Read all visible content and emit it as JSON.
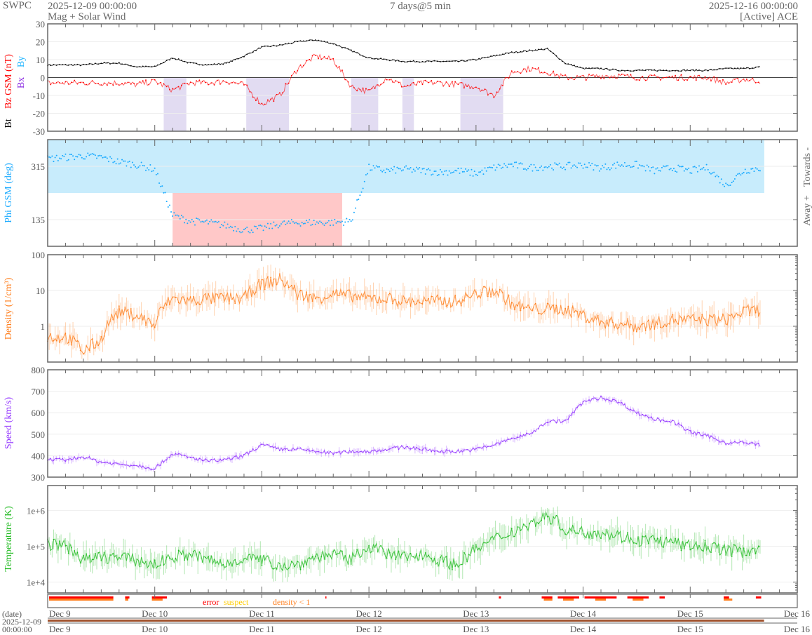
{
  "header": {
    "brand": "SWPC",
    "start_time": "2025-12-09 00:00:00",
    "subtitle": "Mag + Solar Wind",
    "span": "7 days@5 min",
    "end_time": "2025-12-16 00:00:00",
    "source": "[Active] ACE"
  },
  "colors": {
    "bt": "#000000",
    "bz": "#ff0000",
    "bx": "#8a2be2",
    "by": "#1eb4ff",
    "phi": "#19aaff",
    "density": "#ff7f1e",
    "speed": "#9437ff",
    "temperature": "#22bb22",
    "error": "#ff0000",
    "suspect": "#ffcc00",
    "density_low": "#ff7f1e",
    "date_bar": "#a0522d"
  },
  "chart_data": [
    {
      "type": "line",
      "title": "Mag",
      "ylabel_parts": {
        "bt": "Bt",
        "bz": "Bz GSM (nT)",
        "bx": "Bx",
        "by": "By"
      },
      "ylim": [
        -30,
        30
      ],
      "yticks": [
        "30",
        "20",
        "10",
        "0",
        "-10",
        "-20",
        "-30"
      ],
      "ytick_values": [
        30,
        20,
        10,
        0,
        -10,
        -20,
        -30
      ],
      "x_hours_step": 4,
      "series": [
        {
          "name": "Bt",
          "key": "bt",
          "values": [
            7,
            7,
            7,
            8,
            8,
            6,
            6,
            11,
            8,
            7,
            8,
            12,
            17,
            18,
            20,
            21,
            19,
            15,
            11,
            10,
            9,
            9,
            9,
            9,
            10,
            12,
            14,
            15,
            16,
            8,
            5,
            5,
            4,
            4,
            4,
            4,
            4,
            4,
            5,
            5,
            6
          ]
        },
        {
          "name": "Bz GSM",
          "key": "bz",
          "values": [
            -3,
            -3,
            -3,
            -3,
            -3,
            -4,
            -2,
            -7,
            -3,
            -3,
            -2,
            -4,
            -15,
            -10,
            5,
            12,
            10,
            -5,
            -8,
            0,
            -5,
            -3,
            -3,
            -4,
            -5,
            -10,
            3,
            5,
            3,
            0,
            0,
            1,
            1,
            0,
            0,
            0,
            0,
            0,
            -3,
            -1,
            -2
          ]
        }
      ]
    },
    {
      "type": "scatter",
      "ylabel": "Phi GSM (deg)",
      "ylim": [
        45,
        405
      ],
      "yticks": [
        "315",
        "135"
      ],
      "ytick_values": [
        315,
        135
      ],
      "right_labels": {
        "towards": "Towards -",
        "away": "Away +"
      },
      "x_hours_step": 4,
      "series": [
        {
          "name": "Phi GSM",
          "key": "phi",
          "values": [
            340,
            345,
            350,
            345,
            330,
            320,
            305,
            150,
            130,
            125,
            115,
            100,
            105,
            120,
            125,
            125,
            125,
            130,
            310,
            300,
            305,
            300,
            295,
            300,
            290,
            310,
            320,
            310,
            315,
            315,
            320,
            310,
            320,
            320,
            300,
            310,
            300,
            310,
            250,
            300,
            310
          ]
        }
      ]
    },
    {
      "type": "line",
      "ylabel": "Density (1/cm³)",
      "scale": "log",
      "ylim": [
        0.1,
        100
      ],
      "yticks": [
        "100",
        "10",
        "1"
      ],
      "ytick_values": [
        100,
        10,
        1
      ],
      "x_hours_step": 4,
      "series": [
        {
          "name": "Density",
          "key": "density",
          "values": [
            0.5,
            0.5,
            0.2,
            0.4,
            2.5,
            2,
            1,
            6,
            5,
            6,
            6,
            6,
            15,
            20,
            8,
            6,
            8,
            7,
            6,
            6,
            5,
            5,
            5,
            5,
            8,
            10,
            4,
            3,
            3,
            3,
            2,
            1.3,
            1.2,
            1,
            1.2,
            1.5,
            1.5,
            1.5,
            1.5,
            2.5,
            3
          ]
        }
      ]
    },
    {
      "type": "line",
      "ylabel": "Speed (km/s)",
      "ylim": [
        300,
        800
      ],
      "yticks": [
        "800",
        "700",
        "600",
        "500",
        "400",
        "300"
      ],
      "ytick_values": [
        800,
        700,
        600,
        500,
        400,
        300
      ],
      "x_hours_step": 4,
      "series": [
        {
          "name": "Speed",
          "key": "speed",
          "values": [
            380,
            380,
            395,
            370,
            360,
            355,
            340,
            410,
            390,
            375,
            380,
            400,
            450,
            430,
            430,
            420,
            410,
            420,
            420,
            430,
            440,
            430,
            420,
            420,
            430,
            450,
            480,
            500,
            560,
            560,
            650,
            670,
            650,
            600,
            570,
            560,
            510,
            490,
            460,
            460,
            450
          ]
        }
      ]
    },
    {
      "type": "line",
      "ylabel": "Temperature (K)",
      "scale": "log",
      "ylim": [
        5000,
        5000000
      ],
      "yticks": [
        "1e+6",
        "1e+5",
        "1e+4"
      ],
      "ytick_values": [
        1000000,
        100000,
        10000
      ],
      "x_hours_step": 4,
      "series": [
        {
          "name": "Temperature",
          "key": "temperature",
          "values": [
            120000,
            100000,
            40000,
            50000,
            50000,
            40000,
            30000,
            50000,
            60000,
            40000,
            30000,
            50000,
            40000,
            30000,
            30000,
            50000,
            60000,
            40000,
            100000,
            60000,
            50000,
            60000,
            40000,
            30000,
            80000,
            150000,
            250000,
            400000,
            700000,
            300000,
            250000,
            250000,
            200000,
            150000,
            150000,
            120000,
            100000,
            100000,
            80000,
            70000,
            100000
          ]
        }
      ]
    }
  ],
  "flags": {
    "legend": {
      "error": "error",
      "suspect": "suspect",
      "density_low": "density < 1"
    },
    "error_days": [
      [
        0,
        0.6
      ],
      [
        0.71,
        0.75
      ],
      [
        0.96,
        1.1
      ],
      [
        2.58,
        2.59
      ],
      [
        4.2,
        4.22
      ],
      [
        4.6,
        4.7
      ],
      [
        4.75,
        4.95
      ],
      [
        5.0,
        5.3
      ],
      [
        5.4,
        5.6
      ],
      [
        5.7,
        5.75
      ],
      [
        6.3,
        6.35
      ],
      [
        6.6,
        6.65
      ]
    ],
    "density_low_days": [
      [
        0,
        0.6
      ],
      [
        0.71,
        0.74
      ],
      [
        0.96,
        1.06
      ],
      [
        4.62,
        4.7
      ],
      [
        4.8,
        4.9
      ],
      [
        5.1,
        5.2
      ],
      [
        5.45,
        5.55
      ],
      [
        6.3,
        6.38
      ]
    ]
  },
  "x_axis": {
    "ticks": [
      "Dec 9",
      "Dec 10",
      "Dec 11",
      "Dec 12",
      "Dec 13",
      "Dec 14",
      "Dec 15",
      "Dec 16"
    ],
    "date_label": "(date)",
    "date_value": "2025-12-09",
    "time_value": "00:00:00",
    "data_coverage_days": 6.69
  }
}
